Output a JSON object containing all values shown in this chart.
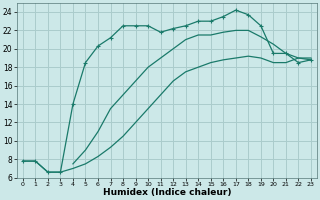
{
  "xlabel": "Humidex (Indice chaleur)",
  "background_color": "#cce8e8",
  "grid_color": "#aacccc",
  "line_color": "#1a7a6a",
  "xlim": [
    -0.5,
    23.5
  ],
  "ylim": [
    6,
    25
  ],
  "yticks": [
    6,
    8,
    10,
    12,
    14,
    16,
    18,
    20,
    22,
    24
  ],
  "xticks": [
    0,
    1,
    2,
    3,
    4,
    5,
    6,
    7,
    8,
    9,
    10,
    11,
    12,
    13,
    14,
    15,
    16,
    17,
    18,
    19,
    20,
    21,
    22,
    23
  ],
  "curve_upper_x": [
    0,
    1,
    2,
    3,
    4,
    5,
    6,
    7,
    8,
    9,
    10,
    11,
    12,
    13,
    14,
    15,
    16,
    17,
    18,
    19,
    20,
    21,
    22,
    23
  ],
  "curve_upper_y": [
    7.8,
    7.8,
    6.6,
    6.6,
    14.0,
    18.5,
    20.3,
    21.2,
    22.5,
    22.5,
    22.5,
    21.8,
    22.2,
    22.5,
    23.0,
    23.0,
    23.5,
    24.2,
    23.7,
    22.5,
    19.5,
    19.5,
    18.5,
    18.8
  ],
  "curve_mid_x": [
    4,
    5,
    6,
    7,
    8,
    9,
    10,
    11,
    12,
    13,
    14,
    15,
    16,
    17,
    18,
    19,
    20,
    21,
    22,
    23
  ],
  "curve_mid_y": [
    7.5,
    9.0,
    11.0,
    13.5,
    15.0,
    16.5,
    18.0,
    19.0,
    20.0,
    21.0,
    21.5,
    21.5,
    21.8,
    22.0,
    22.0,
    21.3,
    20.5,
    19.5,
    19.0,
    18.8
  ],
  "curve_lower_x": [
    0,
    1,
    2,
    3,
    4,
    5,
    6,
    7,
    8,
    9,
    10,
    11,
    12,
    13,
    14,
    15,
    16,
    17,
    18,
    19,
    20,
    21,
    22,
    23
  ],
  "curve_lower_y": [
    7.8,
    7.8,
    6.6,
    6.6,
    7.0,
    7.5,
    8.3,
    9.3,
    10.5,
    12.0,
    13.5,
    15.0,
    16.5,
    17.5,
    18.0,
    18.5,
    18.8,
    19.0,
    19.2,
    19.0,
    18.5,
    18.5,
    19.0,
    19.0
  ]
}
